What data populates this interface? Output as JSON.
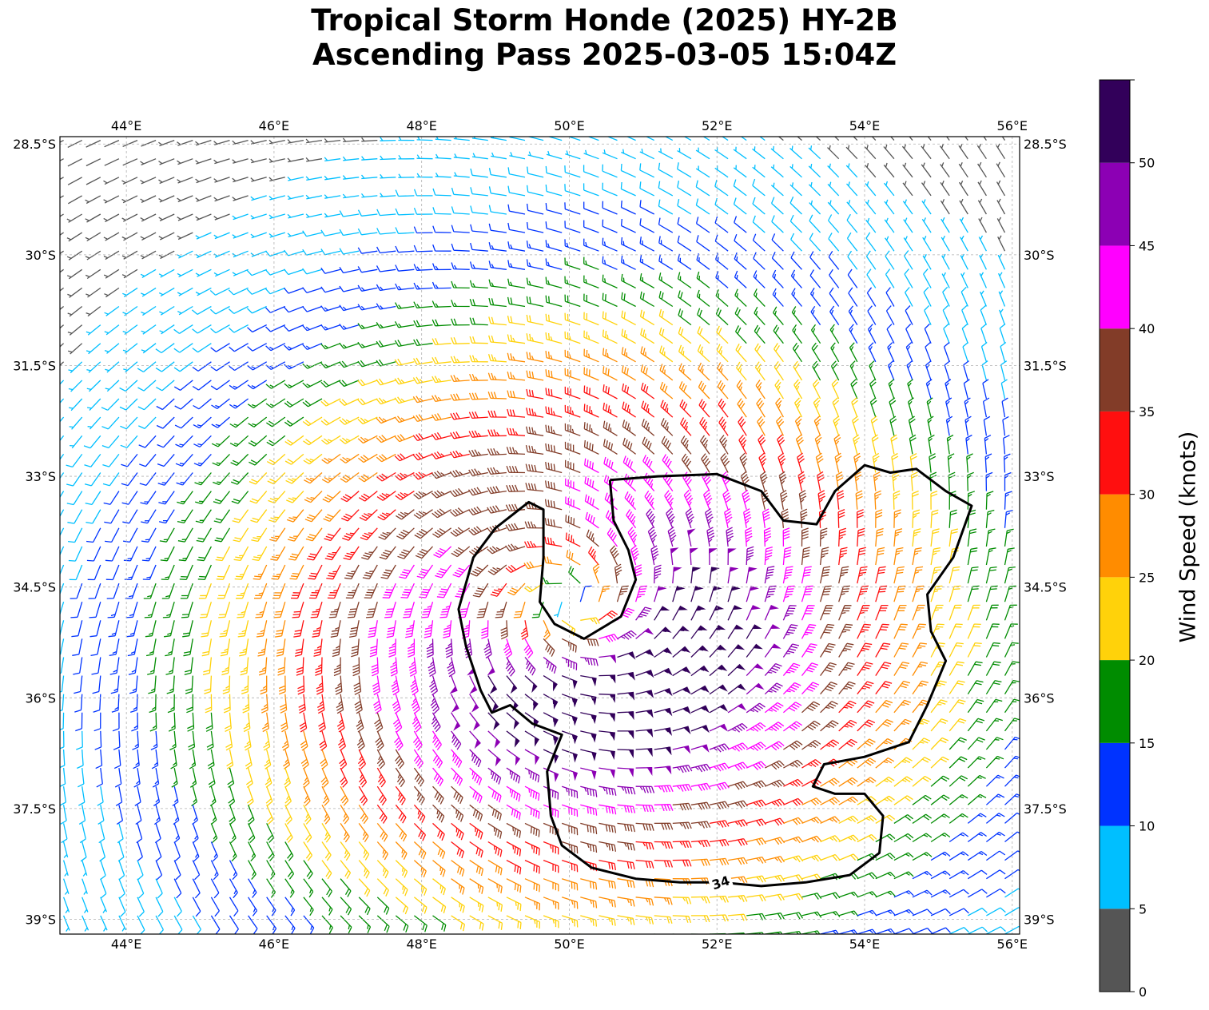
{
  "title": {
    "line1": "Tropical Storm Honde (2025) HY-2B",
    "line2": "Ascending Pass 2025-03-05 15:04Z"
  },
  "map": {
    "lon_range": [
      43.1,
      56.1
    ],
    "lat_range": [
      -39.2,
      -28.4
    ],
    "lon_ticks": [
      {
        "value": 44,
        "label": "44°E"
      },
      {
        "value": 46,
        "label": "46°E"
      },
      {
        "value": 48,
        "label": "48°E"
      },
      {
        "value": 50,
        "label": "50°E"
      },
      {
        "value": 52,
        "label": "52°E"
      },
      {
        "value": 54,
        "label": "54°E"
      },
      {
        "value": 56,
        "label": "56°E"
      }
    ],
    "lat_ticks": [
      {
        "value": -28.5,
        "label": "28.5°S"
      },
      {
        "value": -30,
        "label": "30°S"
      },
      {
        "value": -31.5,
        "label": "31.5°S"
      },
      {
        "value": -33,
        "label": "33°S"
      },
      {
        "value": -34.5,
        "label": "34.5°S"
      },
      {
        "value": -36,
        "label": "36°S"
      },
      {
        "value": -37.5,
        "label": "37.5°S"
      },
      {
        "value": -39,
        "label": "39°S"
      }
    ],
    "gridlines": true,
    "storm_center": {
      "lon": 50.0,
      "lat": -34.7
    },
    "contour_label": "34",
    "contour_34kt": [
      [
        50.55,
        -33.05
      ],
      [
        51.2,
        -33.0
      ],
      [
        52.0,
        -32.97
      ],
      [
        52.6,
        -33.2
      ],
      [
        52.9,
        -33.6
      ],
      [
        53.35,
        -33.65
      ],
      [
        53.6,
        -33.2
      ],
      [
        54.0,
        -32.85
      ],
      [
        54.35,
        -32.95
      ],
      [
        54.7,
        -32.9
      ],
      [
        55.1,
        -33.2
      ],
      [
        55.45,
        -33.4
      ],
      [
        55.2,
        -34.1
      ],
      [
        54.85,
        -34.6
      ],
      [
        54.9,
        -35.1
      ],
      [
        55.1,
        -35.5
      ],
      [
        54.85,
        -36.1
      ],
      [
        54.6,
        -36.6
      ],
      [
        54.0,
        -36.8
      ],
      [
        53.45,
        -36.9
      ],
      [
        53.3,
        -37.2
      ],
      [
        53.6,
        -37.3
      ],
      [
        54.0,
        -37.3
      ],
      [
        54.25,
        -37.6
      ],
      [
        54.2,
        -38.1
      ],
      [
        53.8,
        -38.4
      ],
      [
        53.2,
        -38.5
      ],
      [
        52.6,
        -38.55
      ],
      [
        52.05,
        -38.5
      ],
      [
        51.5,
        -38.5
      ],
      [
        50.9,
        -38.45
      ],
      [
        50.3,
        -38.3
      ],
      [
        49.9,
        -38.0
      ],
      [
        49.75,
        -37.6
      ],
      [
        49.7,
        -37.0
      ],
      [
        49.9,
        -36.5
      ],
      [
        49.5,
        -36.35
      ],
      [
        49.2,
        -36.1
      ],
      [
        48.95,
        -36.2
      ],
      [
        48.8,
        -35.9
      ],
      [
        48.6,
        -35.3
      ],
      [
        48.5,
        -34.8
      ],
      [
        48.7,
        -34.1
      ],
      [
        49.0,
        -33.7
      ],
      [
        49.45,
        -33.35
      ],
      [
        49.65,
        -33.45
      ],
      [
        49.65,
        -34.1
      ],
      [
        49.6,
        -34.7
      ],
      [
        49.8,
        -35.0
      ],
      [
        50.2,
        -35.2
      ],
      [
        50.7,
        -34.9
      ],
      [
        50.9,
        -34.4
      ],
      [
        50.8,
        -34.0
      ],
      [
        50.6,
        -33.6
      ],
      [
        50.55,
        -33.05
      ]
    ]
  },
  "colorbar": {
    "label": "Wind Speed (knots)",
    "bins": [
      {
        "from": 0,
        "to": 5,
        "color": "#555555"
      },
      {
        "from": 5,
        "to": 10,
        "color": "#00bfff"
      },
      {
        "from": 10,
        "to": 15,
        "color": "#0033ff"
      },
      {
        "from": 15,
        "to": 20,
        "color": "#008c00"
      },
      {
        "from": 20,
        "to": 25,
        "color": "#ffd20a"
      },
      {
        "from": 25,
        "to": 30,
        "color": "#ff8c00"
      },
      {
        "from": 30,
        "to": 35,
        "color": "#ff0f0f"
      },
      {
        "from": 35,
        "to": 40,
        "color": "#823c28"
      },
      {
        "from": 40,
        "to": 45,
        "color": "#ff00ff"
      },
      {
        "from": 45,
        "to": 50,
        "color": "#8c00b4"
      },
      {
        "from": 50,
        "to": 55,
        "color": "#32005a"
      }
    ],
    "ticks": [
      {
        "value": 0,
        "label": "0"
      },
      {
        "value": 5,
        "label": "5"
      },
      {
        "value": 10,
        "label": "10"
      },
      {
        "value": 15,
        "label": "15"
      },
      {
        "value": 20,
        "label": "20"
      },
      {
        "value": 25,
        "label": "25"
      },
      {
        "value": 30,
        "label": "30"
      },
      {
        "value": 35,
        "label": "35"
      },
      {
        "value": 40,
        "label": "40"
      },
      {
        "value": 45,
        "label": "45"
      },
      {
        "value": 50,
        "label": "50"
      }
    ]
  }
}
